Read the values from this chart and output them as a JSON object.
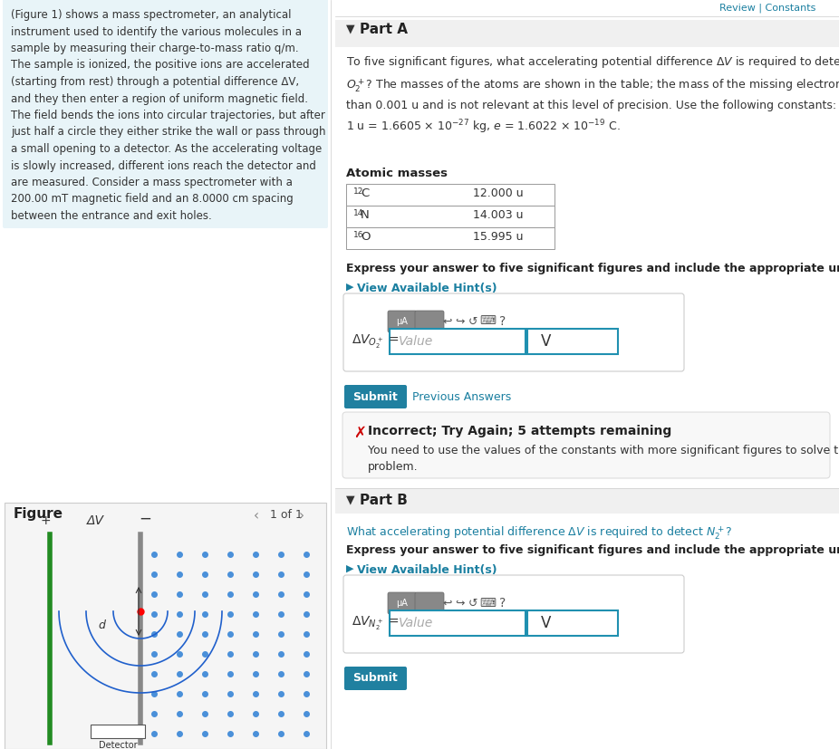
{
  "bg_color": "#ffffff",
  "left_panel_bg": "#e8f4f8",
  "left_panel_text": "(Figure 1) shows a mass spectrometer, an analytical\ninstrument used to identify the various molecules in a\nsample by measuring their charge-to-mass ratio q/m.\nThe sample is ionized, the positive ions are accelerated\n(starting from rest) through a potential difference ΔV,\nand they then enter a region of uniform magnetic field.\nThe field bends the ions into circular trajectories, but after\njust half a circle they either strike the wall or pass through\na small opening to a detector. As the accelerating voltage\nis slowly increased, different ions reach the detector and\nare measured. Consider a mass spectrometer with a\n200.00 mT magnetic field and an 8.0000 cm spacing\nbetween the entrance and exit holes.",
  "figure_label": "Figure",
  "figure_nav": "1 of 1",
  "part_a_label": "Part A",
  "part_a_text": "To five significant figures, what accelerating potential difference ΔV is required to detect the ion\nO₂⁺? The masses of the atoms are shown in the table; the mass of the missing electron is less\nthan 0.001 u and is not relevant at this level of precision. Use the following constants:\n1 u = 1.6605 × 10⁻²⁷ kg, e = 1.6022 × 10⁻¹⁹ C.",
  "atomic_masses_label": "Atomic masses",
  "table_data": [
    [
      "12C",
      "12.000 u"
    ],
    [
      "14N",
      "14.003 u"
    ],
    [
      "16O",
      "15.995 u"
    ]
  ],
  "express_answer_text": "Express your answer to five significant figures and include the appropriate units.",
  "view_hint_text": "View Available Hint(s)",
  "delta_v_label": "ΔVₒ₂⁺ =",
  "value_placeholder": "Value",
  "unit_label": "V",
  "submit_text": "Submit",
  "prev_answers_text": "Previous Answers",
  "incorrect_header": "Incorrect; Try Again; 5 attempts remaining",
  "incorrect_body": "You need to use the values of the constants with more significant figures to solve the\nproblem.",
  "part_b_label": "Part B",
  "part_b_question": "What accelerating potential difference ΔV is required to detect N₂⁺?",
  "part_b_express": "Express your answer to five significant figures and include the appropriate units.",
  "part_b_hint": "View Available Hint(s)",
  "delta_v_n2_label": "ΔVₙ₂⁺ =",
  "teal_color": "#1a7fa0",
  "teal_dark": "#0e6880",
  "submit_bg": "#2080a0",
  "header_bg": "#f0f0f0",
  "part_header_bg": "#e8e8e8",
  "table_border": "#999999",
  "input_border": "#2090b0",
  "incorrect_bg": "#f8f8f8",
  "incorrect_border": "#dddddd",
  "red_x": "#cc0000",
  "review_text": "Review | Constants"
}
